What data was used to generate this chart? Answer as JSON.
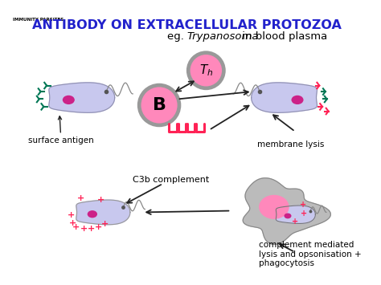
{
  "title_small": "IMMUNITY PARSITES",
  "title_main": "ANTIBODY ON EXTRACELLULAR PROTOZOA",
  "subtitle_plain": "eg. ",
  "subtitle_italic": "Trypanosoma",
  "subtitle_rest": " in blood plasma",
  "label_surface": "surface antigen",
  "label_membrane": "membrane lysis",
  "label_c3b": "C3b complement",
  "label_complement": "complement mediated\nlysis and opsonisation +\nphagocytosis",
  "bg_color": "#ffffff",
  "protozoa_fill": "#c8c8ee",
  "protozoa_outline": "#9090b0",
  "nucleus_fill": "#cc2288",
  "antigen_color": "#007755",
  "b_cell_fill": "#ff88bb",
  "b_cell_outline": "#999999",
  "th_cell_fill": "#ff88bb",
  "th_cell_outline": "#999999",
  "antibody_color": "#ff2255",
  "title_color": "#2222cc",
  "arrow_color": "#222222",
  "plus_color": "#ff2255",
  "macrophage_fill": "#bbbbbb",
  "macrophage_outline": "#888888",
  "flagellum_color": "#888888",
  "dot_color": "#555555"
}
